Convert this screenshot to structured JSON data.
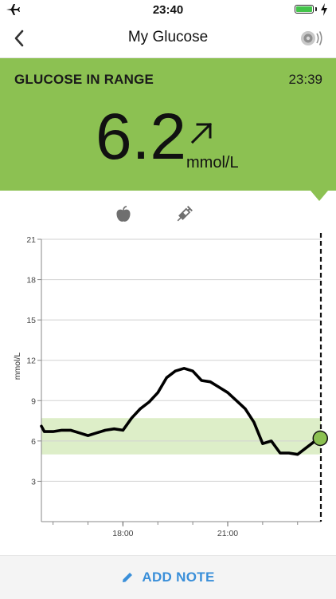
{
  "status_bar": {
    "time": "23:40"
  },
  "nav": {
    "title": "My Glucose"
  },
  "panel": {
    "label": "GLUCOSE IN RANGE",
    "time": "23:39",
    "value": "6.2",
    "unit": "mmol/L",
    "color": "#8cc152"
  },
  "chart_data": {
    "type": "line",
    "ylabel": "mmol/L",
    "y_ticks": [
      "21",
      "18",
      "15",
      "12",
      "9",
      "6",
      "3"
    ],
    "x_ticks": [
      "18:00",
      "21:00"
    ],
    "ylim": [
      0,
      21
    ],
    "xlim": [
      "15:40",
      "23:40"
    ],
    "grid": true,
    "target_range": [
      5,
      7.7
    ],
    "series": [
      {
        "x": [
          "15:40",
          "15:45",
          "16:00",
          "16:15",
          "16:30",
          "16:45",
          "17:00",
          "17:15",
          "17:30",
          "17:45",
          "18:00",
          "18:15",
          "18:30",
          "18:45",
          "19:00",
          "19:15",
          "19:30",
          "19:45",
          "20:00",
          "20:15",
          "20:30",
          "20:45",
          "21:00",
          "21:15",
          "21:30",
          "21:45",
          "22:00",
          "22:15",
          "22:30",
          "22:45",
          "23:00",
          "23:15",
          "23:30",
          "23:39"
        ],
        "values": [
          7.1,
          6.7,
          6.7,
          6.8,
          6.8,
          6.6,
          6.4,
          6.6,
          6.8,
          6.9,
          6.8,
          7.7,
          8.4,
          8.9,
          9.6,
          10.7,
          11.2,
          11.4,
          11.2,
          10.5,
          10.4,
          10.0,
          9.6,
          9.0,
          8.4,
          7.4,
          5.8,
          6.0,
          5.1,
          5.1,
          5.0,
          5.5,
          6.0,
          6.2
        ]
      }
    ],
    "current_point": {
      "x": "23:39",
      "y": 6.2
    },
    "colors": {
      "line": "#000000",
      "range_band": "#ddeec8",
      "point": "#8cc152"
    }
  },
  "bottom": {
    "add_note_label": "ADD NOTE",
    "accent": "#3a8fd9"
  }
}
